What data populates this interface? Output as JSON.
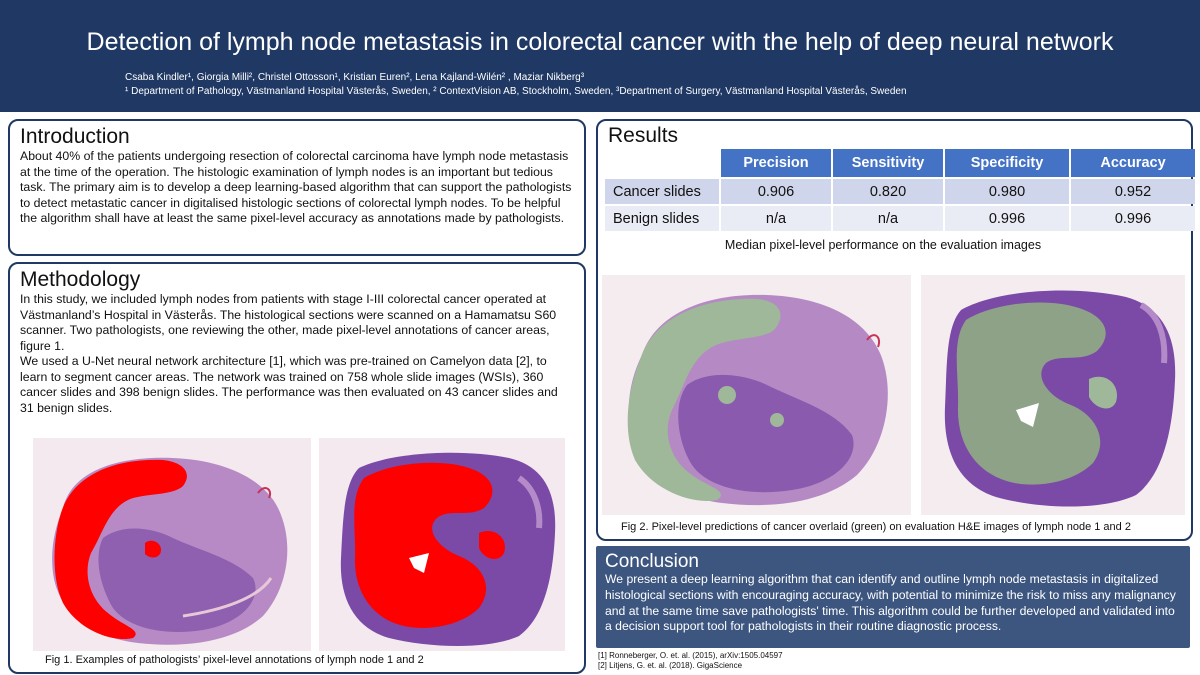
{
  "header": {
    "title": "Detection of lymph node metastasis in colorectal cancer with the help of deep neural network",
    "authors": "Csaba Kindler¹, Giorgia Milli², Christel Ottosson¹, Kristian Euren², Lena Kajland-Wilén² , Maziar Nikberg³",
    "affiliations": "¹ Department of Pathology, Västmanland Hospital Västerås, Sweden, ² ContextVision AB, Stockholm, Sweden, ³Department of Surgery, Västmanland Hospital Västerås, Sweden"
  },
  "introduction": {
    "heading": "Introduction",
    "text": "About 40% of the patients undergoing resection of colorectal carcinoma have lymph node metastasis at the time of the operation. The histologic examination of lymph nodes is an important but tedious task. The primary aim is to develop a deep learning-based algorithm that can support the pathologists to detect metastatic cancer in digitalised histologic sections of colorectal lymph nodes. To be helpful the algorithm shall have at least the same pixel-level accuracy as annotations made by pathologists."
  },
  "methodology": {
    "heading": "Methodology",
    "para1": "In this study, we included lymph nodes from patients with stage I-III colorectal cancer operated at Västmanland’s Hospital in Västerås. The histological sections were scanned on a Hamamatsu S60 scanner. Two pathologists, one reviewing the other, made pixel-level annotations of cancer areas, figure 1.",
    "para2": "We used a U-Net neural network architecture [1], which was pre-trained on Camelyon data [2], to learn to segment cancer areas. The network was trained on 758 whole slide images (WSIs), 360 cancer slides and 398 benign slides. The performance was then evaluated on 43 cancer slides and 31 benign slides.",
    "fig_caption": "Fig 1. Examples of pathologists’ pixel-level annotations of lymph node 1 and 2"
  },
  "results": {
    "heading": "Results",
    "columns": [
      "Precision",
      "Sensitivity",
      "Specificity",
      "Accuracy"
    ],
    "rows": [
      {
        "label": "Cancer slides",
        "values": [
          "0.906",
          "0.820",
          "0.980",
          "0.952"
        ]
      },
      {
        "label": "Benign slides",
        "values": [
          "n/a",
          "n/a",
          "0.996",
          "0.996"
        ]
      }
    ],
    "table_caption": "Median pixel-level performance on the evaluation images",
    "fig_caption": "Fig 2. Pixel-level predictions of cancer overlaid (green) on evaluation H&E images of lymph node 1 and 2"
  },
  "conclusion": {
    "heading": "Conclusion",
    "text": "We present a deep learning algorithm that can identify and outline lymph node metastasis in digitalized histological sections with encouraging accuracy, with potential to minimize the risk to miss any malignancy and at the same time save pathologists' time. This algorithm could be further developed and validated  into a decision support tool for pathologists in their routine diagnostic process."
  },
  "references": [
    "[1] Ronneberger, O. et. al. (2015), arXiv:1505.04597",
    "[2] Litjens, G. et. al. (2018). GigaScience"
  ],
  "colors": {
    "header_bg": "#1f3864",
    "table_header": "#4472c4",
    "annotation_red": "#ff0000",
    "prediction_green": "#9fb89a",
    "tissue_purple": "#9b6cb4"
  }
}
